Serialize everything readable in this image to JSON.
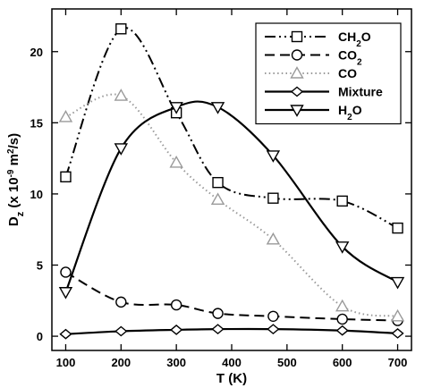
{
  "chart_data": {
    "type": "line",
    "xlabel_parts": [
      "T (K)"
    ],
    "ylabel_parts": [
      "D",
      "z",
      " (x 10",
      "-9",
      " m",
      "2",
      "/s)"
    ],
    "xlim": [
      75,
      725
    ],
    "ylim": [
      -1,
      23
    ],
    "xticks": [
      100,
      200,
      300,
      400,
      500,
      600,
      700
    ],
    "yticks": [
      0,
      5,
      10,
      15,
      20
    ],
    "grid": false,
    "legend_position": "top-right",
    "series": [
      {
        "name_parts": [
          "CH",
          "2",
          "O"
        ],
        "color": "#000000",
        "marker": "square",
        "dash": "dash-dot-dot",
        "x": [
          100,
          200,
          300,
          375,
          475,
          600,
          700
        ],
        "y": [
          11.2,
          21.6,
          15.7,
          10.8,
          9.7,
          9.5,
          7.6
        ]
      },
      {
        "name_parts": [
          "CO",
          "2",
          ""
        ],
        "color": "#000000",
        "marker": "circle",
        "dash": "dashed",
        "x": [
          100,
          200,
          300,
          375,
          475,
          600,
          700
        ],
        "y": [
          4.5,
          2.4,
          2.2,
          1.6,
          1.4,
          1.2,
          1.1
        ]
      },
      {
        "name_parts": [
          "CO",
          "",
          ""
        ],
        "color": "#9a9a9a",
        "marker": "triangle-up",
        "dash": "dotted",
        "x": [
          100,
          200,
          300,
          375,
          475,
          600,
          700
        ],
        "y": [
          15.4,
          16.9,
          12.2,
          9.6,
          6.8,
          2.1,
          1.4
        ]
      },
      {
        "name_parts": [
          "Mixture",
          "",
          ""
        ],
        "color": "#000000",
        "marker": "diamond",
        "dash": "solid",
        "x": [
          100,
          200,
          300,
          375,
          475,
          600,
          700
        ],
        "y": [
          0.15,
          0.35,
          0.45,
          0.5,
          0.5,
          0.4,
          0.2
        ]
      },
      {
        "name_parts": [
          "H",
          "2",
          "O"
        ],
        "color": "#000000",
        "marker": "triangle-down",
        "dash": "solid",
        "x": [
          100,
          200,
          300,
          375,
          475,
          600,
          700
        ],
        "y": [
          3.1,
          13.2,
          16.1,
          16.1,
          12.7,
          6.3,
          3.8
        ]
      }
    ]
  }
}
